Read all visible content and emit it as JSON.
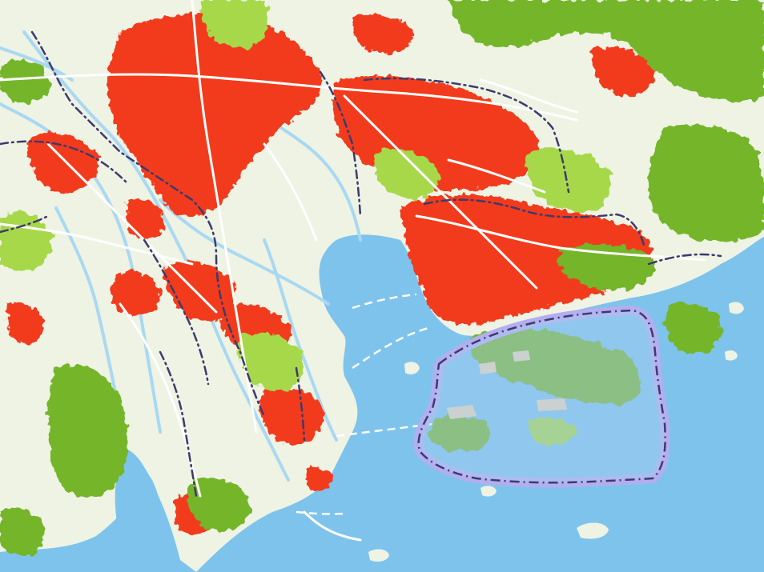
{
  "map": {
    "colors": {
      "land": "#eef3e4",
      "water": "#7ec3ec",
      "river": "#a9d8f2",
      "urban": "#f23a1e",
      "vegetation": "#74b52c",
      "vegetation_highlight": "#a6d84a",
      "road": "#ffffff",
      "boundary": "#3d3a6e",
      "sar_boundary_glow": "#b4aef0",
      "sar_fill": "#a7cdf2",
      "reclaimed_land": "#e9d6b4"
    },
    "layers": [
      "land-base",
      "water-bodies",
      "river-network",
      "urban-areas",
      "vegetated-hills",
      "road-network",
      "administrative-boundaries",
      "special-region-boundary"
    ]
  }
}
